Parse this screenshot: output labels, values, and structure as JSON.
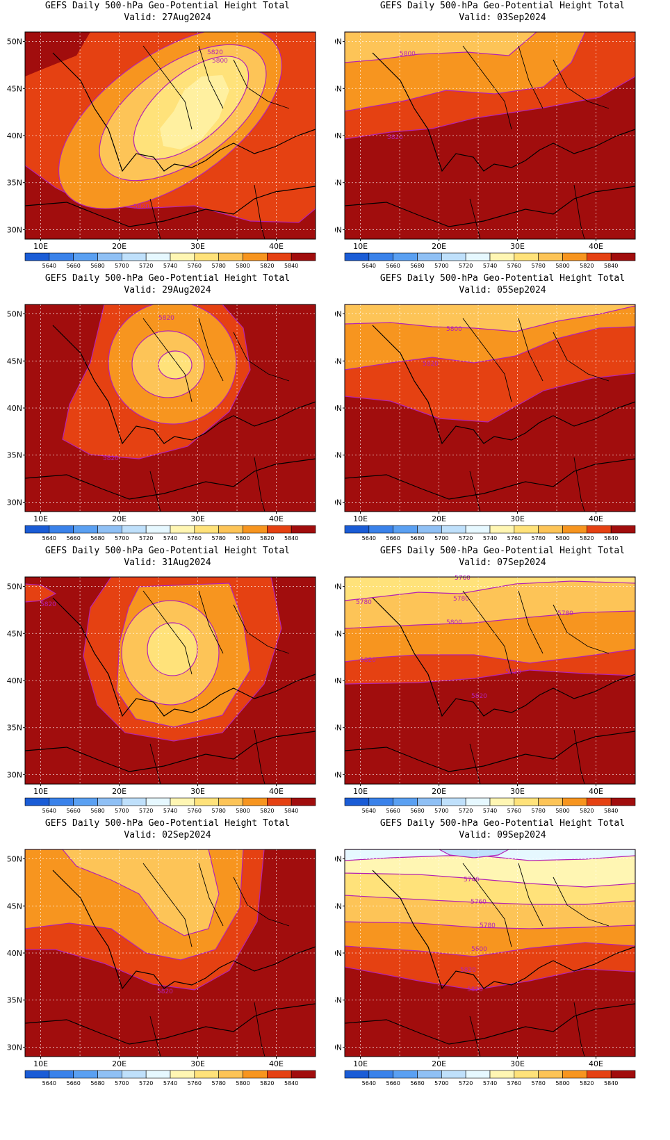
{
  "colorbar": {
    "colors": [
      "#1a5cd6",
      "#3a82ea",
      "#5aa0f2",
      "#8fc0f5",
      "#bfe0fb",
      "#e6f8ff",
      "#fff6b3",
      "#ffe27a",
      "#fdc457",
      "#f7951f",
      "#e54112",
      "#a10d0d"
    ],
    "labels": [
      "5640",
      "5660",
      "5680",
      "5700",
      "5720",
      "5740",
      "5760",
      "5780",
      "5800",
      "5820",
      "5840"
    ]
  },
  "axes": {
    "lon_labels": [
      "10E",
      "20E",
      "30E",
      "40E"
    ],
    "lat_labels": [
      "50N",
      "45N",
      "40N",
      "35N",
      "30N"
    ]
  },
  "panels": [
    {
      "title": "GEFS Daily 500-hPa Geo-Potential Height Total",
      "valid": "Valid: 27Aug2024",
      "contour_labels": [
        "5800",
        "5820",
        "5820"
      ]
    },
    {
      "title": "GEFS Daily 500-hPa Geo-Potential Height Total",
      "valid": "Valid: 03Sep2024",
      "contour_labels": [
        "5800",
        "5820"
      ]
    },
    {
      "title": "GEFS Daily 500-hPa Geo-Potential Height Total",
      "valid": "Valid: 29Aug2024",
      "contour_labels": [
        "5820",
        "5820"
      ]
    },
    {
      "title": "GEFS Daily 500-hPa Geo-Potential Height Total",
      "valid": "Valid: 05Sep2024",
      "contour_labels": [
        "5800",
        "5820"
      ]
    },
    {
      "title": "GEFS Daily 500-hPa Geo-Potential Height Total",
      "valid": "Valid: 31Aug2024",
      "contour_labels": [
        "5820"
      ]
    },
    {
      "title": "GEFS Daily 500-hPa Geo-Potential Height Total",
      "valid": "Valid: 07Sep2024",
      "contour_labels": [
        "5760",
        "5780",
        "5780",
        "5780",
        "5800",
        "5820",
        "5820",
        "5820"
      ]
    },
    {
      "title": "GEFS Daily 500-hPa Geo-Potential Height Total",
      "valid": "Valid: 02Sep2024",
      "contour_labels": [
        "5820"
      ]
    },
    {
      "title": "GEFS Daily 500-hPa Geo-Potential Height Total",
      "valid": "Valid: 09Sep2024",
      "contour_labels": [
        "5740",
        "5760",
        "5780",
        "5800",
        "5820",
        "5820"
      ]
    }
  ]
}
